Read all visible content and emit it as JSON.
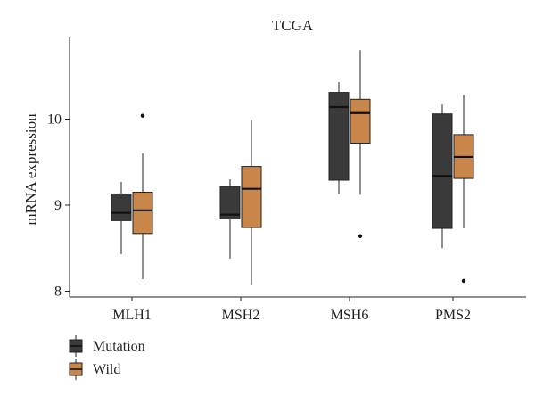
{
  "chart_data": {
    "type": "boxplot",
    "title": "TCGA",
    "xlabel": "",
    "ylabel": "mRNA expression",
    "ylim": [
      7.95,
      10.95
    ],
    "yticks": [
      8,
      9,
      10
    ],
    "grid": false,
    "legend_position": "bottom-left",
    "categories": [
      "MLH1",
      "MSH2",
      "MSH6",
      "PMS2"
    ],
    "series": [
      {
        "name": "Mutation",
        "color": "#3a3a3a",
        "boxes": [
          {
            "whisker_low": 8.43,
            "q1": 8.82,
            "median": 8.91,
            "q3": 9.13,
            "whisker_high": 9.27,
            "outliers": []
          },
          {
            "whisker_low": 8.38,
            "q1": 8.84,
            "median": 8.89,
            "q3": 9.22,
            "whisker_high": 9.3,
            "outliers": []
          },
          {
            "whisker_low": 9.13,
            "q1": 9.29,
            "median": 10.14,
            "q3": 10.31,
            "whisker_high": 10.43,
            "outliers": []
          },
          {
            "whisker_low": 8.5,
            "q1": 8.73,
            "median": 9.34,
            "q3": 10.06,
            "whisker_high": 10.17,
            "outliers": []
          }
        ]
      },
      {
        "name": "Wild",
        "color": "#c8864a",
        "boxes": [
          {
            "whisker_low": 8.14,
            "q1": 8.67,
            "median": 8.94,
            "q3": 9.15,
            "whisker_high": 9.6,
            "outliers": [
              10.04
            ]
          },
          {
            "whisker_low": 8.07,
            "q1": 8.74,
            "median": 9.19,
            "q3": 9.45,
            "whisker_high": 9.99,
            "outliers": []
          },
          {
            "whisker_low": 9.12,
            "q1": 9.72,
            "median": 10.07,
            "q3": 10.23,
            "whisker_high": 10.8,
            "outliers": [
              8.64
            ]
          },
          {
            "whisker_low": 8.73,
            "q1": 9.31,
            "median": 9.56,
            "q3": 9.82,
            "whisker_high": 10.28,
            "outliers": [
              8.12
            ]
          }
        ]
      }
    ]
  }
}
